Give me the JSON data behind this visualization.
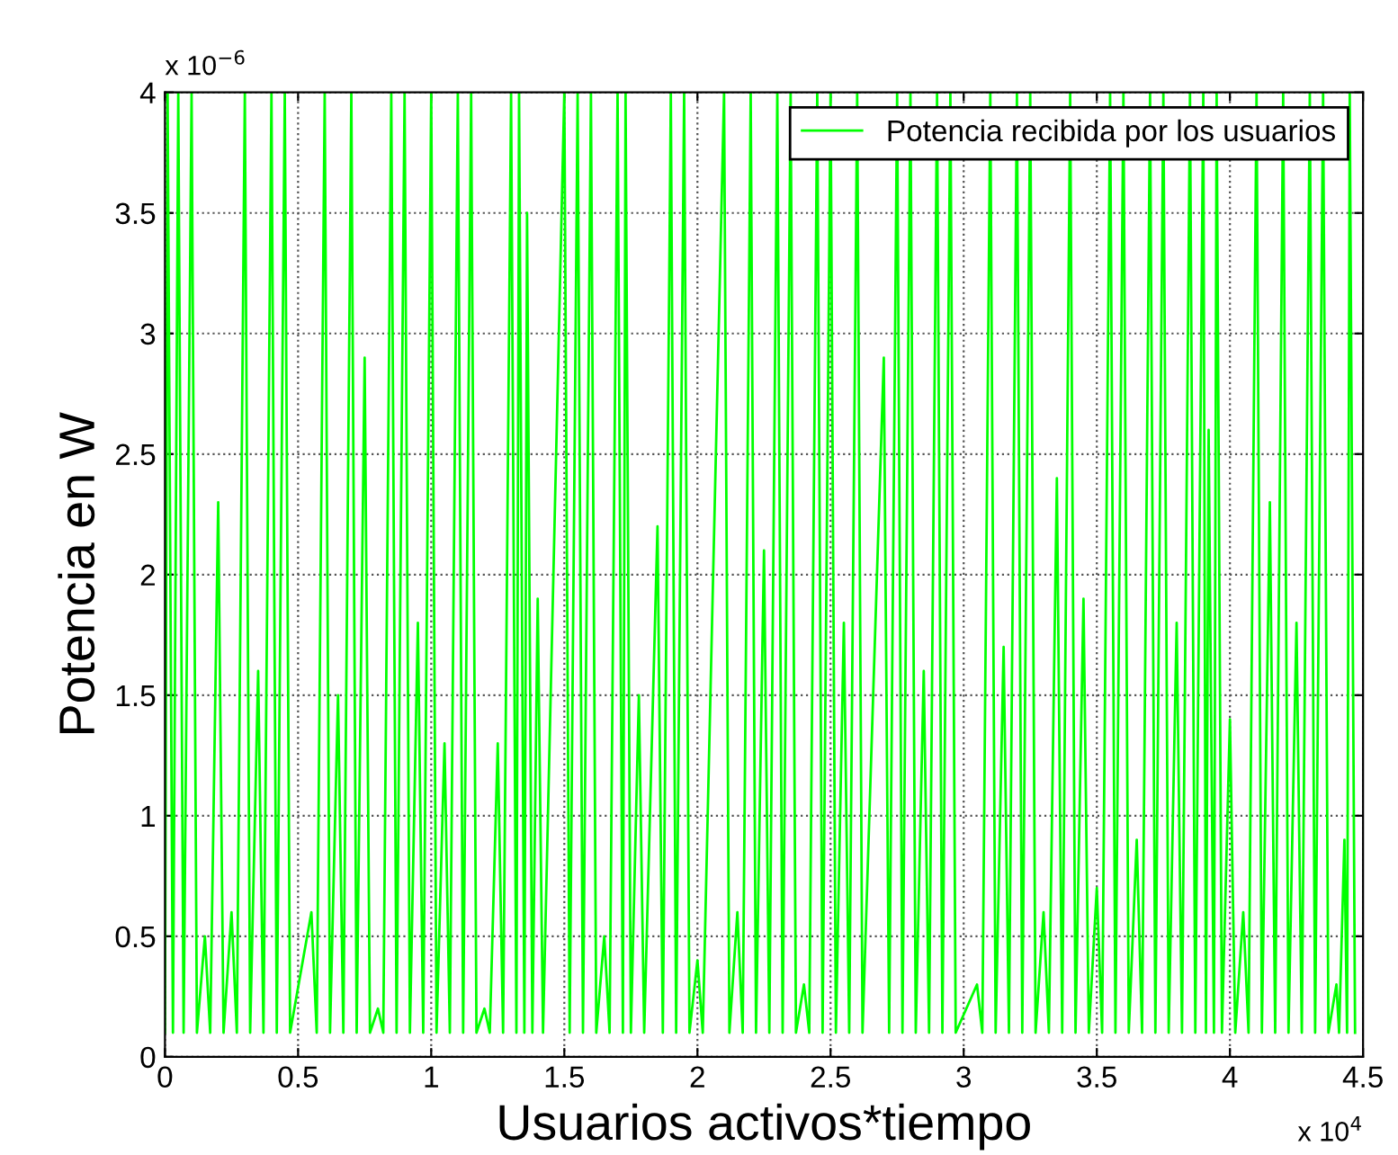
{
  "chart_data": {
    "type": "line",
    "xlabel": "Usuarios activos*tiempo",
    "ylabel": "Potencia en W",
    "xlim": [
      0,
      4.5
    ],
    "ylim": [
      0,
      4
    ],
    "xticks": [
      0,
      0.5,
      1,
      1.5,
      2,
      2.5,
      3,
      3.5,
      4,
      4.5
    ],
    "yticks": [
      0,
      0.5,
      1,
      1.5,
      2,
      2.5,
      3,
      3.5,
      4
    ],
    "annotations": [
      "x 10$^{4}$",
      "x 10$^{−6}$"
    ],
    "grid": true,
    "legend": "top right",
    "marker": "none",
    "line_style": "solid",
    "series": [
      {
        "name": "Potencia recibida por los usuarios",
        "color": "#00ff00",
        "x": [
          0,
          0.01,
          0.03,
          0.05,
          0.07,
          0.1,
          0.12,
          0.15,
          0.17,
          0.2,
          0.22,
          0.25,
          0.27,
          0.3,
          0.32,
          0.35,
          0.37,
          0.4,
          0.42,
          0.45,
          0.47,
          0.55,
          0.57,
          0.6,
          0.62,
          0.65,
          0.67,
          0.7,
          0.72,
          0.75,
          0.77,
          0.8,
          0.82,
          0.85,
          0.87,
          0.9,
          0.92,
          0.95,
          0.97,
          1,
          1.02,
          1.05,
          1.07,
          1.1,
          1.12,
          1.15,
          1.17,
          1.2,
          1.22,
          1.25,
          1.27,
          1.3,
          1.32,
          1.33,
          1.35,
          1.36,
          1.38,
          1.4,
          1.42,
          1.5,
          1.52,
          1.55,
          1.57,
          1.6,
          1.62,
          1.65,
          1.67,
          1.7,
          1.72,
          1.73,
          1.75,
          1.78,
          1.8,
          1.85,
          1.87,
          1.9,
          1.92,
          1.95,
          1.97,
          2,
          2.02,
          2.1,
          2.12,
          2.15,
          2.17,
          2.2,
          2.22,
          2.25,
          2.27,
          2.3,
          2.32,
          2.35,
          2.37,
          2.4,
          2.42,
          2.45,
          2.47,
          2.5,
          2.52,
          2.55,
          2.57,
          2.6,
          2.62,
          2.7,
          2.72,
          2.75,
          2.77,
          2.8,
          2.82,
          2.85,
          2.87,
          2.9,
          2.92,
          2.95,
          2.97,
          3.05,
          3.07,
          3.1,
          3.12,
          3.15,
          3.17,
          3.2,
          3.22,
          3.25,
          3.27,
          3.3,
          3.32,
          3.35,
          3.37,
          3.4,
          3.42,
          3.45,
          3.47,
          3.5,
          3.52,
          3.55,
          3.57,
          3.6,
          3.62,
          3.65,
          3.67,
          3.7,
          3.72,
          3.75,
          3.77,
          3.8,
          3.82,
          3.85,
          3.87,
          3.9,
          3.91,
          3.92,
          3.94,
          3.95,
          3.97,
          4,
          4.02,
          4.05,
          4.07,
          4.1,
          4.12,
          4.15,
          4.17,
          4.2,
          4.22,
          4.25,
          4.27,
          4.3,
          4.32,
          4.35,
          4.37,
          4.4,
          4.41,
          4.43,
          4.44,
          4.45,
          4.47
        ],
        "values": [
          0.1,
          4,
          0.1,
          4,
          0.1,
          4,
          0.1,
          0.5,
          0.1,
          2.3,
          0.1,
          0.6,
          0.1,
          4,
          0.1,
          1.6,
          0.1,
          4,
          0.1,
          4,
          0.1,
          0.6,
          0.1,
          4,
          0.1,
          1.5,
          0.1,
          4,
          0.1,
          2.9,
          0.1,
          0.2,
          0.1,
          4,
          0.1,
          4,
          0.1,
          1.8,
          0.1,
          4,
          0.1,
          1.3,
          0.1,
          4,
          0.1,
          4,
          0.1,
          0.2,
          0.1,
          1.3,
          0.1,
          4,
          0.1,
          4,
          0.1,
          3.5,
          0.1,
          1.9,
          0.1,
          4,
          0.1,
          4,
          0.1,
          4,
          0.1,
          0.5,
          0.1,
          4,
          0.1,
          4,
          0.1,
          1.5,
          0.1,
          2.2,
          0.1,
          4,
          0.1,
          4,
          0.1,
          0.4,
          0.1,
          4,
          0.1,
          0.6,
          0.1,
          4,
          0.1,
          2.1,
          0.1,
          4,
          0.1,
          4,
          0.1,
          0.3,
          0.1,
          4,
          0.1,
          4,
          0.1,
          1.8,
          0.1,
          4,
          0.1,
          2.9,
          0.1,
          4,
          0.1,
          4,
          0.1,
          1.6,
          0.1,
          4,
          0.1,
          4,
          0.1,
          0.3,
          0.1,
          4,
          0.1,
          1.7,
          0.1,
          4,
          0.1,
          4,
          0.1,
          0.6,
          0.1,
          2.4,
          0.1,
          4,
          0.1,
          1.9,
          0.1,
          0.7,
          0.1,
          4,
          0.1,
          4,
          0.1,
          0.9,
          0.1,
          4,
          0.1,
          4,
          0.1,
          1.8,
          0.1,
          4,
          0.1,
          4,
          0.1,
          2.6,
          0.1,
          4,
          0.1,
          1.4,
          0.1,
          0.6,
          0.1,
          4,
          0.1,
          2.3,
          0.1,
          4,
          0.1,
          1.8,
          0.1,
          4,
          0.1,
          4,
          0.1,
          0.3,
          0.1,
          0.9,
          0.1,
          4,
          0.1
        ]
      }
    ]
  }
}
